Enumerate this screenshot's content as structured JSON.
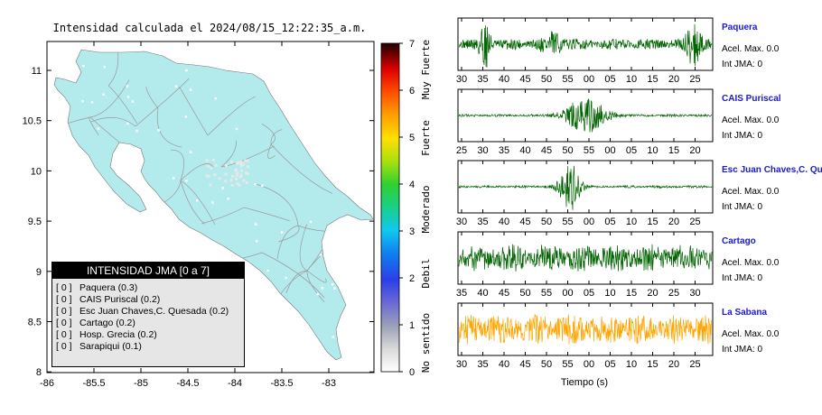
{
  "map": {
    "title": "Intensidad calculada el 2024/08/15_12:22:35_a.m.",
    "x_ticks": [
      "-86",
      "-85.5",
      "-85",
      "-84.5",
      "-84",
      "-83.5",
      "-83"
    ],
    "y_ticks": [
      "11",
      "10.5",
      "10",
      "9.5",
      "9",
      "8.5",
      "8"
    ],
    "land_color": "#b3eaec",
    "road_color": "#9a9a9a"
  },
  "colorbar": {
    "ticks": [
      "7",
      "6",
      "5",
      "4",
      "3",
      "2",
      "1",
      "0"
    ],
    "labels": [
      "Muy Fuerte",
      "Fuerte",
      "Moderado",
      "Debil",
      "No sentido"
    ]
  },
  "legend": {
    "title": "INTENSIDAD JMA [0 a 7]",
    "items": [
      {
        "code": "[ 0 ]",
        "label": "Paquera (0.3)"
      },
      {
        "code": "[ 0 ]",
        "label": "CAIS Puriscal (0.2)"
      },
      {
        "code": "[ 0 ]",
        "label": "Esc Juan Chaves,C. Quesada (0.2)"
      },
      {
        "code": "[ 0 ]",
        "label": "Cartago (0.2)"
      },
      {
        "code": "[ 0 ]",
        "label": "Hosp. Grecia (0.2)"
      },
      {
        "code": "[ 0 ]",
        "label": "Sarapiqui (0.1)"
      }
    ]
  },
  "chart_data": [
    {
      "type": "line",
      "station": "Paquera",
      "accel_label": "Acel. Max. 0.0",
      "int_label": "Int JMA: 0",
      "x_ticks": [
        "30",
        "35",
        "40",
        "45",
        "50",
        "55",
        "00",
        "05",
        "10",
        "15",
        "20",
        "25"
      ],
      "color": "#006400",
      "amplitude": 0.22,
      "bursts": [
        [
          0.1,
          0.9,
          0.025
        ],
        [
          0.93,
          0.75,
          0.03
        ],
        [
          0.37,
          0.35,
          0.04
        ]
      ]
    },
    {
      "type": "line",
      "station": "CAIS Puriscal",
      "accel_label": "Acel. Max. 0.0",
      "int_label": "Int JMA: 0",
      "x_ticks": [
        "25",
        "30",
        "35",
        "40",
        "45",
        "50",
        "55",
        "00",
        "05",
        "10",
        "15",
        "20"
      ],
      "color": "#006400",
      "amplitude": 0.05,
      "bursts": [
        [
          0.5,
          0.7,
          0.08
        ]
      ]
    },
    {
      "type": "line",
      "station": "Esc Juan Chaves,C. Qu",
      "accel_label": "Acel. Max. 0.0",
      "int_label": "Int JMA: 0",
      "x_ticks": [
        "30",
        "35",
        "40",
        "45",
        "50",
        "55",
        "00",
        "05",
        "10",
        "15",
        "20",
        "25"
      ],
      "color": "#006400",
      "amplitude": 0.05,
      "bursts": [
        [
          0.44,
          0.95,
          0.04
        ]
      ]
    },
    {
      "type": "line",
      "station": "Cartago",
      "accel_label": "Acel. Max. 0.0",
      "int_label": "Int JMA: 0",
      "x_ticks": [
        "35",
        "40",
        "45",
        "50",
        "55",
        "00",
        "05",
        "10",
        "15",
        "20",
        "25",
        "30"
      ],
      "color": "#006400",
      "amplitude": 0.55,
      "bursts": []
    },
    {
      "type": "line",
      "station": "La Sabana",
      "accel_label": "Acel. Max. 0.0",
      "int_label": "Int JMA: 0",
      "x_ticks": [
        "30",
        "35",
        "40",
        "45",
        "50",
        "55",
        "00",
        "05",
        "10",
        "15",
        "20",
        "25"
      ],
      "color": "#ffa500",
      "amplitude": 0.6,
      "bursts": []
    }
  ],
  "xlabel": "Tiempo (s)"
}
